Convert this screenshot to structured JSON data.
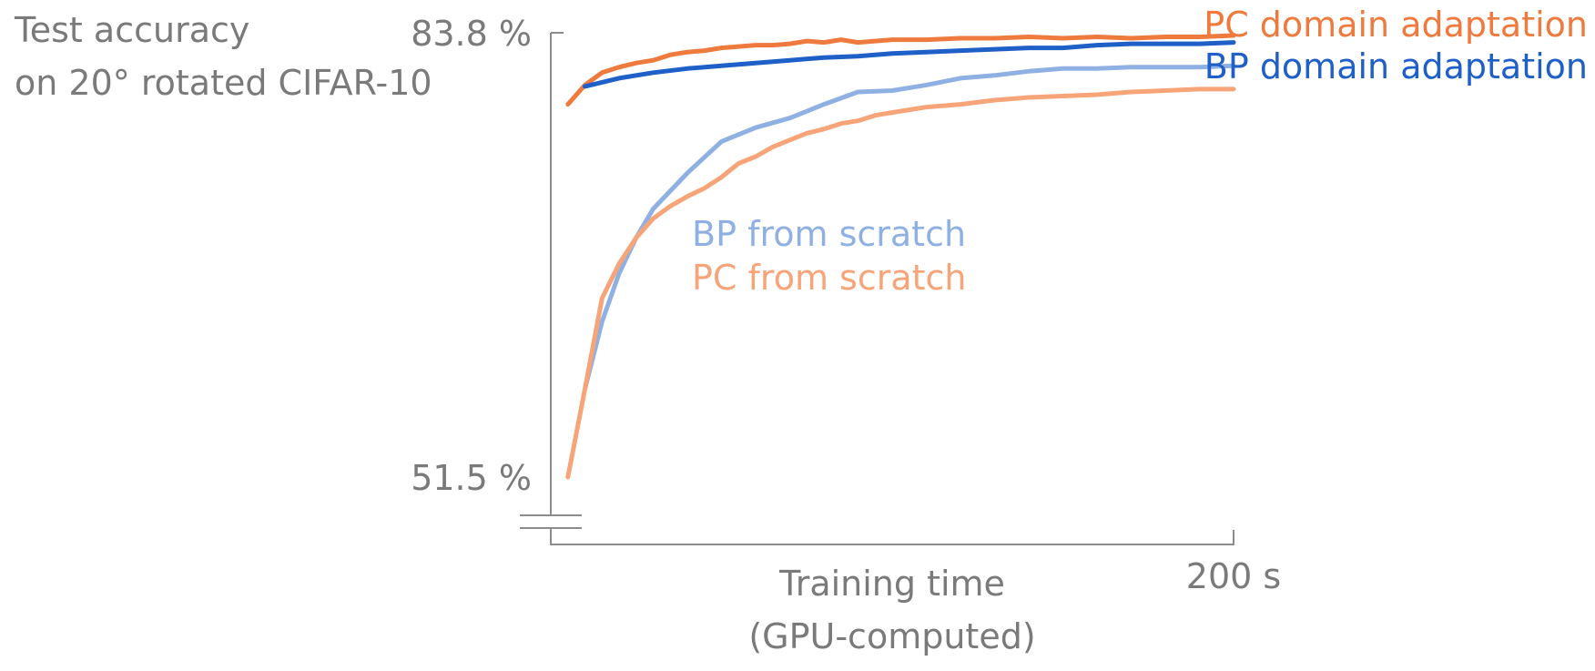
{
  "chart_data": {
    "type": "line",
    "ylabel": [
      "Test accuracy",
      "on 20° rotated CIFAR-10"
    ],
    "xlabel": [
      "Training time",
      "(GPU-computed)"
    ],
    "y_ticks": [
      "83.8 %",
      "51.5 %"
    ],
    "x_ticks": [
      "200 s"
    ],
    "ylim": [
      51.5,
      83.8
    ],
    "xlim": [
      0,
      200
    ],
    "axis_break": true,
    "grid": false,
    "legend": "direct labels",
    "series": [
      {
        "name": "PC domain adaptation",
        "color": "#ef7a3e",
        "x": [
          5,
          10,
          15,
          20,
          25,
          30,
          35,
          40,
          45,
          50,
          55,
          60,
          65,
          70,
          75,
          80,
          85,
          90,
          95,
          100,
          110,
          120,
          130,
          140,
          150,
          160,
          170,
          180,
          190,
          200
        ],
        "y": [
          78.6,
          80.0,
          80.9,
          81.3,
          81.6,
          81.8,
          82.2,
          82.4,
          82.5,
          82.7,
          82.8,
          82.9,
          82.9,
          83.0,
          83.2,
          83.1,
          83.3,
          83.1,
          83.2,
          83.3,
          83.3,
          83.4,
          83.4,
          83.5,
          83.4,
          83.5,
          83.4,
          83.5,
          83.5,
          83.6
        ]
      },
      {
        "name": "BP domain adaptation",
        "color": "#1f5fc8",
        "x": [
          10,
          20,
          30,
          40,
          50,
          60,
          70,
          80,
          90,
          100,
          110,
          120,
          130,
          140,
          150,
          160,
          170,
          180,
          190,
          200
        ],
        "y": [
          79.9,
          80.5,
          80.9,
          81.2,
          81.4,
          81.6,
          81.8,
          82.0,
          82.1,
          82.3,
          82.4,
          82.5,
          82.6,
          82.7,
          82.7,
          82.9,
          83.0,
          83.0,
          83.0,
          83.1
        ]
      },
      {
        "name": "BP from scratch",
        "color": "#8fb0e3",
        "x": [
          10,
          15,
          20,
          25,
          30,
          40,
          50,
          60,
          70,
          80,
          90,
          100,
          110,
          120,
          130,
          140,
          150,
          160,
          170,
          180,
          190,
          200
        ],
        "y": [
          57.9,
          62.8,
          66.3,
          68.9,
          71.0,
          73.6,
          75.9,
          76.9,
          77.6,
          78.6,
          79.5,
          79.6,
          80.0,
          80.5,
          80.7,
          81.0,
          81.2,
          81.2,
          81.3,
          81.3,
          81.3,
          81.4
        ]
      },
      {
        "name": "PC from scratch",
        "color": "#f6a478",
        "x": [
          5,
          10,
          15,
          20,
          25,
          30,
          35,
          40,
          45,
          50,
          55,
          60,
          65,
          70,
          75,
          80,
          85,
          90,
          95,
          100,
          110,
          120,
          130,
          140,
          150,
          160,
          170,
          180,
          190,
          200
        ],
        "y": [
          51.5,
          57.9,
          64.5,
          67.0,
          68.9,
          70.3,
          71.2,
          71.9,
          72.5,
          73.3,
          74.3,
          74.8,
          75.5,
          76.0,
          76.5,
          76.8,
          77.2,
          77.4,
          77.8,
          78.0,
          78.4,
          78.6,
          78.9,
          79.1,
          79.2,
          79.3,
          79.5,
          79.6,
          79.7,
          79.7
        ]
      }
    ]
  }
}
